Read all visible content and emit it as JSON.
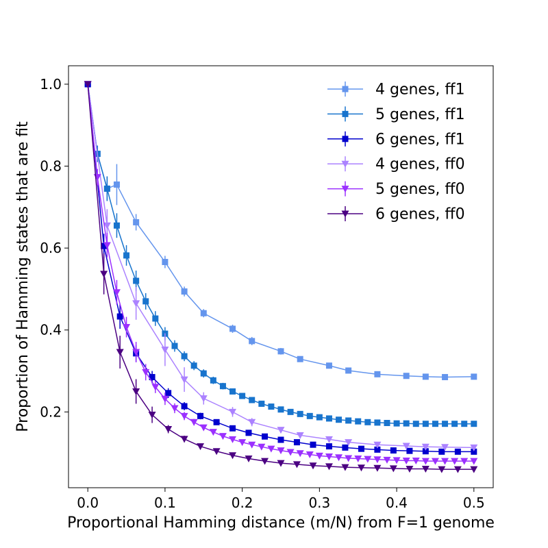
{
  "chart_data": {
    "type": "line",
    "title": "",
    "xlabel": "Proportional Hamming distance (m/N) from F=1 genome",
    "ylabel": "Proportion of Hamming states that are fit",
    "xlim": [
      -0.025,
      0.525
    ],
    "ylim": [
      0.015,
      1.045
    ],
    "xticks": [
      0.0,
      0.1,
      0.2,
      0.3,
      0.4,
      0.5
    ],
    "xtick_labels": [
      "0.0",
      "0.1",
      "0.2",
      "0.3",
      "0.4",
      "0.5"
    ],
    "yticks": [
      0.2,
      0.4,
      0.6,
      0.8,
      1.0
    ],
    "ytick_labels": [
      "0.2",
      "0.4",
      "0.6",
      "0.8",
      "1.0"
    ],
    "grid": false,
    "legend_position": "top-right",
    "series": [
      {
        "name": "4 genes, ff1",
        "marker": "square",
        "color": "#6495ed",
        "x": [
          0,
          0.0125,
          0.025,
          0.0375,
          0.0625,
          0.1,
          0.125,
          0.15,
          0.1875,
          0.2125,
          0.25,
          0.275,
          0.3125,
          0.3375,
          0.375,
          0.4125,
          0.4375,
          0.4625,
          0.5
        ],
        "y": [
          1.0,
          0.83,
          0.745,
          0.755,
          0.663,
          0.566,
          0.494,
          0.441,
          0.403,
          0.373,
          0.348,
          0.329,
          0.313,
          0.301,
          0.292,
          0.288,
          0.286,
          0.285,
          0.286
        ],
        "err": [
          0,
          0.02,
          0.03,
          0.05,
          0.02,
          0.015,
          0.012,
          0.01,
          0.01,
          0.01,
          0.008,
          0.007,
          0.006,
          0.006,
          0.005,
          0.005,
          0.005,
          0.005,
          0.005
        ]
      },
      {
        "name": "5 genes, ff1",
        "marker": "square",
        "color": "#1874cd",
        "x": [
          0,
          0.0125,
          0.025,
          0.0375,
          0.05,
          0.0625,
          0.075,
          0.0875,
          0.1,
          0.1125,
          0.125,
          0.1375,
          0.15,
          0.1625,
          0.175,
          0.1875,
          0.2,
          0.2125,
          0.225,
          0.2375,
          0.25,
          0.2625,
          0.275,
          0.2875,
          0.3,
          0.3125,
          0.325,
          0.3375,
          0.35,
          0.3625,
          0.375,
          0.3875,
          0.4,
          0.4125,
          0.425,
          0.4375,
          0.45,
          0.4625,
          0.475,
          0.4875,
          0.5
        ],
        "y": [
          1.0,
          0.83,
          0.745,
          0.655,
          0.582,
          0.52,
          0.47,
          0.428,
          0.391,
          0.361,
          0.336,
          0.313,
          0.294,
          0.277,
          0.263,
          0.25,
          0.239,
          0.229,
          0.22,
          0.213,
          0.206,
          0.2,
          0.195,
          0.19,
          0.187,
          0.184,
          0.181,
          0.179,
          0.177,
          0.175,
          0.174,
          0.173,
          0.172,
          0.172,
          0.171,
          0.171,
          0.171,
          0.171,
          0.171,
          0.171,
          0.171
        ],
        "err": [
          0,
          0.02,
          0.03,
          0.03,
          0.025,
          0.025,
          0.02,
          0.018,
          0.016,
          0.014,
          0.012,
          0.011,
          0.01,
          0.009,
          0.008,
          0.007,
          0.006,
          0.006,
          0.005,
          0.005,
          0.005,
          0.004,
          0.004,
          0.004,
          0.004,
          0.004,
          0.003,
          0.003,
          0.003,
          0.003,
          0.003,
          0.003,
          0.003,
          0.003,
          0.003,
          0.003,
          0.003,
          0.003,
          0.003,
          0.003,
          0.003
        ]
      },
      {
        "name": "6 genes, ff1",
        "marker": "square",
        "color": "#0000cd",
        "x": [
          0,
          0.0208,
          0.0417,
          0.0625,
          0.0833,
          0.1042,
          0.125,
          0.1458,
          0.1667,
          0.1875,
          0.2083,
          0.2292,
          0.25,
          0.2708,
          0.2917,
          0.3125,
          0.3333,
          0.3542,
          0.375,
          0.3958,
          0.4167,
          0.4375,
          0.4583,
          0.4792,
          0.5
        ],
        "y": [
          1.0,
          0.605,
          0.433,
          0.343,
          0.285,
          0.246,
          0.214,
          0.19,
          0.175,
          0.16,
          0.149,
          0.14,
          0.132,
          0.126,
          0.12,
          0.116,
          0.113,
          0.11,
          0.108,
          0.106,
          0.105,
          0.104,
          0.103,
          0.103,
          0.103
        ],
        "err": [
          0,
          0.03,
          0.03,
          0.02,
          0.015,
          0.012,
          0.01,
          0.008,
          0.007,
          0.006,
          0.005,
          0.005,
          0.004,
          0.004,
          0.004,
          0.003,
          0.003,
          0.003,
          0.003,
          0.003,
          0.003,
          0.003,
          0.003,
          0.003,
          0.003
        ]
      },
      {
        "name": "4 genes, ff0",
        "marker": "triangle-down",
        "color": "#ab82ff",
        "x": [
          0,
          0.025,
          0.0625,
          0.1,
          0.125,
          0.15,
          0.1875,
          0.2125,
          0.25,
          0.275,
          0.3125,
          0.3375,
          0.375,
          0.4125,
          0.4375,
          0.4625,
          0.5
        ],
        "y": [
          1.0,
          0.655,
          0.465,
          0.352,
          0.279,
          0.233,
          0.2,
          0.175,
          0.156,
          0.143,
          0.133,
          0.126,
          0.12,
          0.117,
          0.115,
          0.114,
          0.113
        ],
        "err": [
          0,
          0.04,
          0.04,
          0.04,
          0.03,
          0.015,
          0.012,
          0.01,
          0.007,
          0.006,
          0.005,
          0.004,
          0.004,
          0.004,
          0.004,
          0.004,
          0.004
        ]
      },
      {
        "name": "5 genes, ff0",
        "marker": "triangle-down",
        "color": "#9b30ff",
        "x": [
          0,
          0.0125,
          0.025,
          0.0375,
          0.05,
          0.0625,
          0.075,
          0.0875,
          0.1,
          0.1125,
          0.125,
          0.1375,
          0.15,
          0.1625,
          0.175,
          0.1875,
          0.2,
          0.2125,
          0.225,
          0.2375,
          0.25,
          0.2625,
          0.275,
          0.2875,
          0.3,
          0.3125,
          0.325,
          0.3375,
          0.35,
          0.3625,
          0.375,
          0.3875,
          0.4,
          0.4125,
          0.425,
          0.4375,
          0.45,
          0.4625,
          0.475,
          0.4875,
          0.5
        ],
        "y": [
          1.0,
          0.773,
          0.607,
          0.492,
          0.407,
          0.346,
          0.297,
          0.261,
          0.232,
          0.209,
          0.19,
          0.175,
          0.162,
          0.151,
          0.141,
          0.133,
          0.126,
          0.12,
          0.115,
          0.11,
          0.106,
          0.102,
          0.099,
          0.096,
          0.093,
          0.091,
          0.089,
          0.087,
          0.086,
          0.085,
          0.084,
          0.083,
          0.082,
          0.081,
          0.081,
          0.08,
          0.08,
          0.08,
          0.08,
          0.08,
          0.08
        ],
        "err": [
          0,
          0.02,
          0.03,
          0.03,
          0.025,
          0.025,
          0.02,
          0.015,
          0.015,
          0.012,
          0.01,
          0.008,
          0.007,
          0.006,
          0.005,
          0.005,
          0.005,
          0.004,
          0.004,
          0.004,
          0.004,
          0.003,
          0.003,
          0.003,
          0.003,
          0.003,
          0.003,
          0.003,
          0.003,
          0.003,
          0.003,
          0.003,
          0.003,
          0.003,
          0.003,
          0.003,
          0.003,
          0.003,
          0.003,
          0.003,
          0.003
        ]
      },
      {
        "name": "6 genes, ff0",
        "marker": "triangle-down",
        "color": "#4b0082",
        "x": [
          0,
          0.0208,
          0.0417,
          0.0625,
          0.0833,
          0.1042,
          0.125,
          0.1458,
          0.1667,
          0.1875,
          0.2083,
          0.2292,
          0.25,
          0.2708,
          0.2917,
          0.3125,
          0.3333,
          0.3542,
          0.375,
          0.3958,
          0.4167,
          0.4375,
          0.4583,
          0.4792,
          0.5
        ],
        "y": [
          1.0,
          0.537,
          0.346,
          0.25,
          0.193,
          0.158,
          0.134,
          0.116,
          0.104,
          0.094,
          0.086,
          0.08,
          0.075,
          0.072,
          0.069,
          0.067,
          0.065,
          0.064,
          0.063,
          0.062,
          0.061,
          0.061,
          0.06,
          0.06,
          0.06
        ],
        "err": [
          0,
          0.05,
          0.04,
          0.03,
          0.02,
          0.01,
          0.008,
          0.006,
          0.005,
          0.004,
          0.004,
          0.003,
          0.003,
          0.003,
          0.003,
          0.002,
          0.002,
          0.002,
          0.002,
          0.002,
          0.002,
          0.002,
          0.002,
          0.002,
          0.002
        ]
      }
    ]
  }
}
